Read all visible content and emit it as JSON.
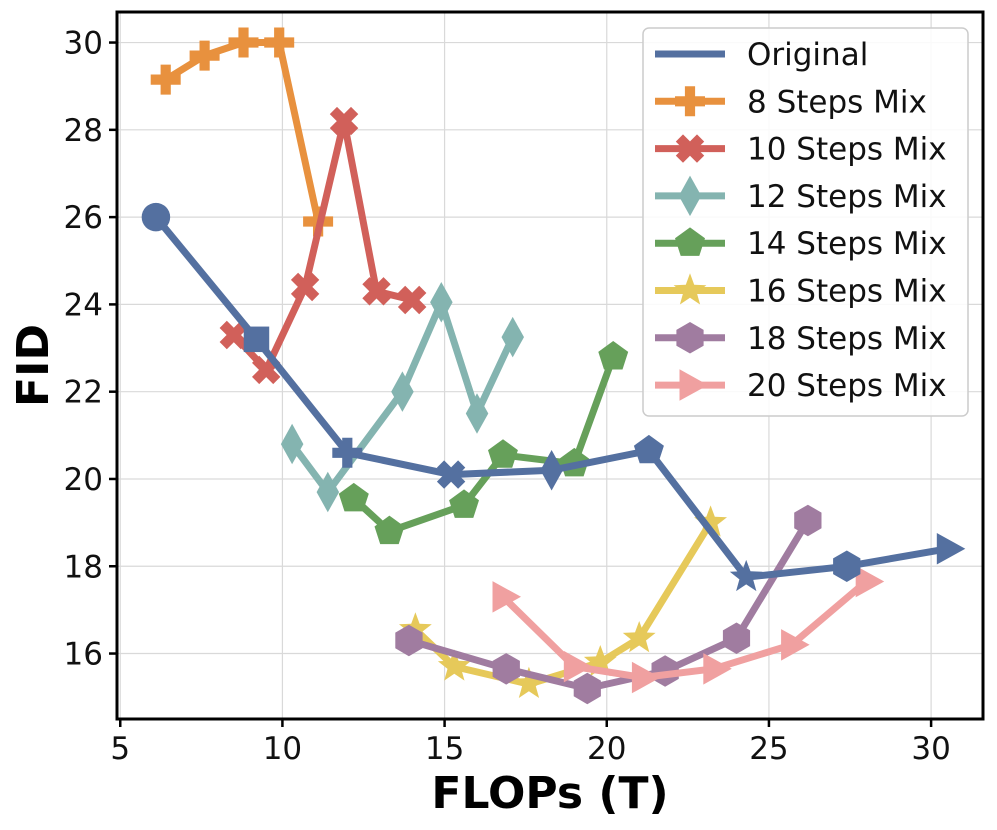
{
  "chart_data": {
    "type": "line",
    "xlabel": "FLOPs (T)",
    "ylabel": "FID",
    "xlim": [
      4.9,
      31.6
    ],
    "ylim": [
      14.5,
      30.7
    ],
    "xticks": [
      5,
      10,
      15,
      20,
      25,
      30
    ],
    "yticks": [
      16,
      18,
      20,
      22,
      24,
      26,
      28,
      30
    ],
    "grid": true,
    "legend_position": "top-right",
    "series": [
      {
        "name": "Original",
        "color": "#5470a0",
        "marker": "varied",
        "x": [
          6.1,
          9.2,
          12.0,
          15.2,
          18.3,
          21.3,
          24.3,
          27.4,
          30.5
        ],
        "y": [
          26.0,
          23.2,
          20.6,
          20.1,
          20.2,
          20.65,
          17.75,
          18.0,
          18.4
        ],
        "point_markers": [
          "circle",
          "square",
          "plus",
          "x",
          "diamond",
          "pentagon",
          "star",
          "hexagon",
          "triangle-right"
        ]
      },
      {
        "name": "8 Steps Mix",
        "color": "#e8913e",
        "marker": "plus",
        "x": [
          6.4,
          7.6,
          8.8,
          9.9,
          11.1
        ],
        "y": [
          29.15,
          29.7,
          30.0,
          30.0,
          25.9
        ]
      },
      {
        "name": "10 Steps Mix",
        "color": "#d1605a",
        "marker": "x",
        "x": [
          8.5,
          9.5,
          10.7,
          11.9,
          12.9,
          14.0
        ],
        "y": [
          23.3,
          22.5,
          24.4,
          28.2,
          24.3,
          24.1
        ]
      },
      {
        "name": "12 Steps Mix",
        "color": "#84b4b0",
        "marker": "diamond",
        "x": [
          10.3,
          11.4,
          13.7,
          14.9,
          16.0,
          17.1
        ],
        "y": [
          20.8,
          19.7,
          22.0,
          24.05,
          21.5,
          23.25
        ]
      },
      {
        "name": "14 Steps Mix",
        "color": "#66a05a",
        "marker": "pentagon",
        "x": [
          12.2,
          13.3,
          15.6,
          16.8,
          19.0,
          20.2
        ],
        "y": [
          19.55,
          18.8,
          19.4,
          20.55,
          20.35,
          22.8
        ]
      },
      {
        "name": "16 Steps Mix",
        "color": "#e6c95a",
        "marker": "star",
        "x": [
          14.1,
          15.3,
          17.6,
          19.8,
          21.0,
          23.2
        ],
        "y": [
          16.55,
          15.7,
          15.3,
          15.8,
          16.35,
          19.0
        ]
      },
      {
        "name": "18 Steps Mix",
        "color": "#a07ca0",
        "marker": "hexagon",
        "x": [
          13.9,
          16.9,
          19.4,
          21.8,
          24.0,
          26.2
        ],
        "y": [
          16.3,
          15.65,
          15.2,
          15.6,
          16.35,
          19.05
        ]
      },
      {
        "name": "20 Steps Mix",
        "color": "#f0a0a0",
        "marker": "triangle-right",
        "x": [
          16.8,
          19.0,
          21.1,
          23.3,
          25.7,
          28.0
        ],
        "y": [
          17.3,
          15.7,
          15.45,
          15.65,
          16.2,
          17.65
        ]
      }
    ]
  }
}
